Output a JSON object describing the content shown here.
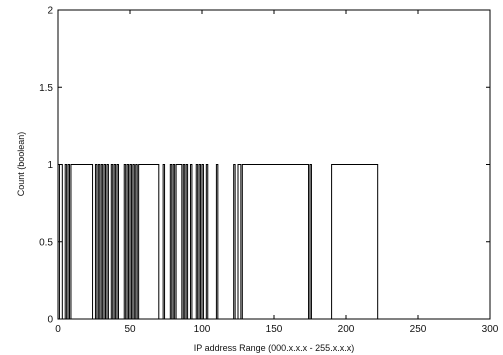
{
  "chart_data": {
    "type": "line",
    "title": "",
    "xlabel": "IP address Range (000.x.x.x - 255.x.x.x)",
    "ylabel": "Count (boolean)",
    "xlim": [
      0,
      300
    ],
    "ylim": [
      0,
      2
    ],
    "xticks": [
      0,
      50,
      100,
      150,
      200,
      250,
      300
    ],
    "yticks": [
      0,
      0.5,
      1,
      1.5,
      2
    ],
    "ytick_labels": [
      "0",
      "0.5",
      "1",
      "1.5",
      "2"
    ],
    "grid": false,
    "step_intervals": [
      [
        1,
        3
      ],
      [
        5,
        6
      ],
      [
        7,
        8
      ],
      [
        9,
        24
      ],
      [
        26,
        27
      ],
      [
        28,
        29
      ],
      [
        30,
        31
      ],
      [
        32,
        33
      ],
      [
        34,
        35
      ],
      [
        37,
        38
      ],
      [
        39,
        40
      ],
      [
        41,
        42
      ],
      [
        46,
        47
      ],
      [
        48,
        49
      ],
      [
        50,
        51
      ],
      [
        52,
        53
      ],
      [
        54,
        55
      ],
      [
        56,
        70
      ],
      [
        73,
        74
      ],
      [
        78,
        79
      ],
      [
        80,
        81
      ],
      [
        82,
        86
      ],
      [
        87,
        88
      ],
      [
        89,
        90
      ],
      [
        92,
        93
      ],
      [
        96,
        97
      ],
      [
        98,
        99
      ],
      [
        100,
        101
      ],
      [
        103,
        104
      ],
      [
        110,
        111
      ],
      [
        122,
        123
      ],
      [
        125,
        127
      ],
      [
        128,
        174
      ],
      [
        175,
        176
      ],
      [
        190,
        222
      ]
    ]
  }
}
